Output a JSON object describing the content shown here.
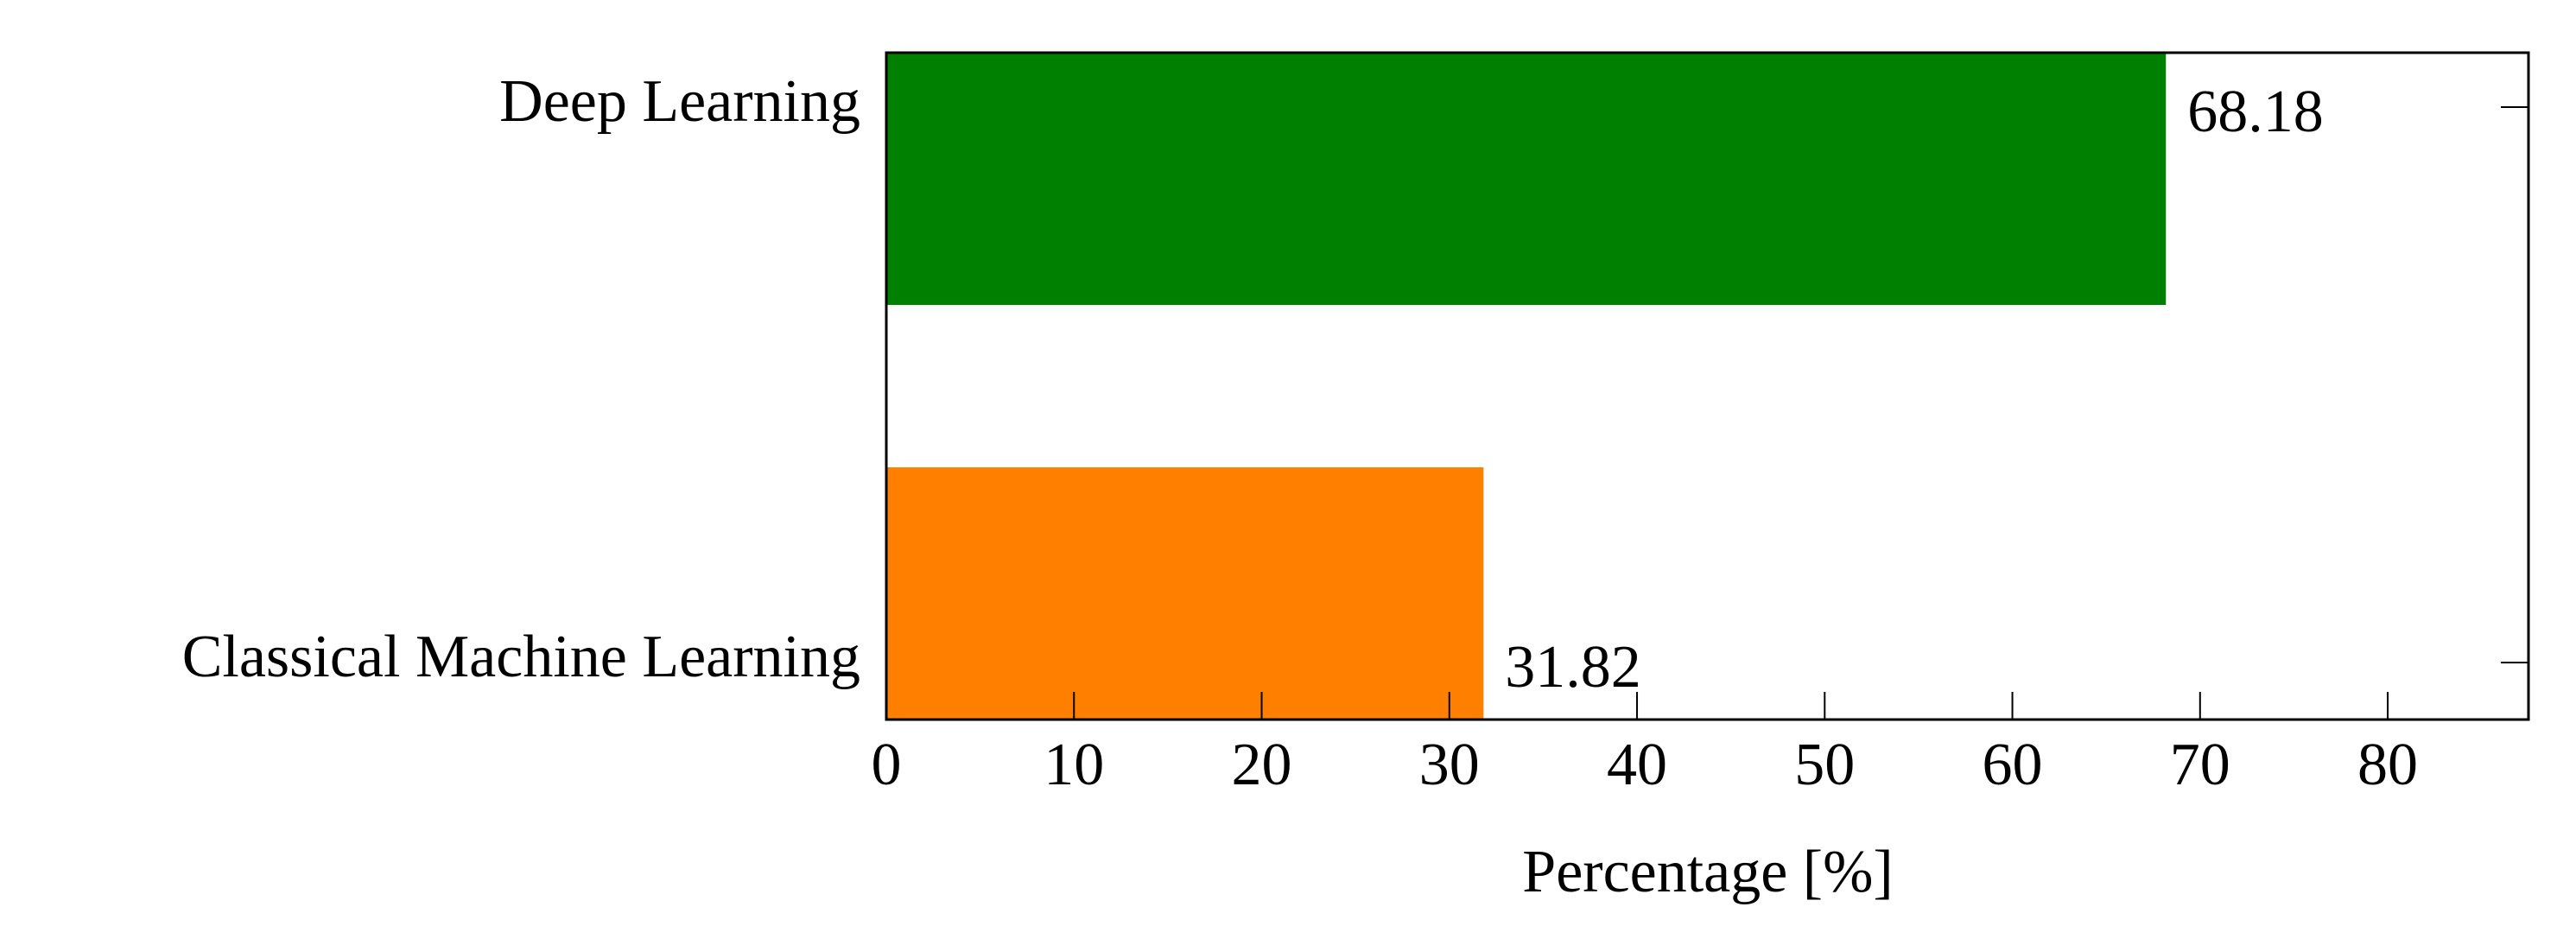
{
  "chart_data": {
    "type": "bar",
    "orientation": "horizontal",
    "categories": [
      "Deep Learning",
      "Classical Machine Learning"
    ],
    "series": [
      {
        "name": "Percentage",
        "values": [
          68.18,
          31.82
        ]
      }
    ],
    "colors": [
      "#008000",
      "#ff8000"
    ],
    "xlabel": "Percentage [%]",
    "xlim": [
      0,
      87.5
    ],
    "xticks": [
      0,
      10,
      20,
      30,
      40,
      50,
      60,
      70,
      80
    ]
  }
}
